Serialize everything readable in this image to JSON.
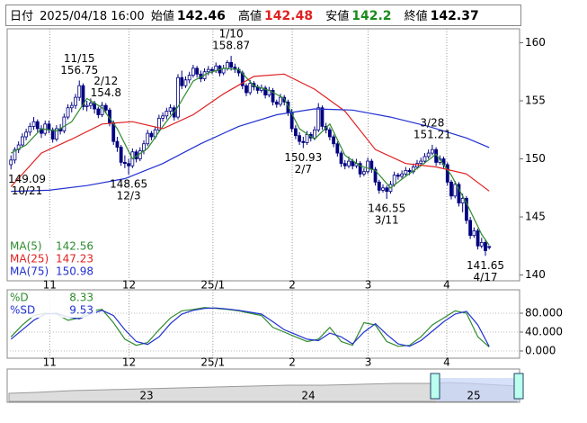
{
  "header": {
    "date_label": "日付",
    "date": "2025/04/18 16:00",
    "open_label": "始値",
    "open": 142.46,
    "high_label": "高値",
    "high": 142.48,
    "low_label": "安値",
    "low": 142.2,
    "close_label": "終値",
    "close": 142.37
  },
  "chart_data": [
    {
      "type": "candlestick",
      "up_color": "#ffffff",
      "down_color": "#000080",
      "xlim": [
        -1,
        134
      ],
      "xticks": [
        {
          "value": 10.2,
          "label": "11"
        },
        {
          "value": 31.1,
          "label": "12"
        },
        {
          "value": 53.2,
          "label": "25/1"
        },
        {
          "value": 74.1,
          "label": "2"
        },
        {
          "value": 94.1,
          "label": "3"
        },
        {
          "value": 114.8,
          "label": "4"
        }
      ],
      "ylim": [
        139.5,
        161.2
      ],
      "yticks": [
        140,
        145,
        150,
        155,
        160
      ],
      "grid": true,
      "candles": [
        [
          149.5,
          150.3,
          149.09,
          149.9
        ],
        [
          149.9,
          151.0,
          149.6,
          150.8
        ],
        [
          150.8,
          151.5,
          150.5,
          151.2
        ],
        [
          151.2,
          152.2,
          151.0,
          151.9
        ],
        [
          151.9,
          152.6,
          151.6,
          152.3
        ],
        [
          152.3,
          153.1,
          152.0,
          152.8
        ],
        [
          152.8,
          153.6,
          152.5,
          153.2
        ],
        [
          153.2,
          153.4,
          152.3,
          152.6
        ],
        [
          152.6,
          152.9,
          151.8,
          152.2
        ],
        [
          152.2,
          153.3,
          152.0,
          153.0
        ],
        [
          153.0,
          153.3,
          152.2,
          152.5
        ],
        [
          152.5,
          152.7,
          151.4,
          151.7
        ],
        [
          151.7,
          152.9,
          151.5,
          152.6
        ],
        [
          152.6,
          153.0,
          152.1,
          152.4
        ],
        [
          152.4,
          153.9,
          152.2,
          153.6
        ],
        [
          153.6,
          154.7,
          153.4,
          154.4
        ],
        [
          154.4,
          154.9,
          154.0,
          154.6
        ],
        [
          154.6,
          155.6,
          154.3,
          155.3
        ],
        [
          155.3,
          156.75,
          155.0,
          156.3
        ],
        [
          156.3,
          156.5,
          154.2,
          154.5
        ],
        [
          154.5,
          155.0,
          154.1,
          154.6
        ],
        [
          154.6,
          155.2,
          154.3,
          154.8
        ],
        [
          154.8,
          155.0,
          153.9,
          154.3
        ],
        [
          154.3,
          154.5,
          153.5,
          153.8
        ],
        [
          153.8,
          154.9,
          153.6,
          154.6
        ],
        [
          154.6,
          154.8,
          153.9,
          154.2
        ],
        [
          154.2,
          154.4,
          152.8,
          153.1
        ],
        [
          153.1,
          153.3,
          151.2,
          151.5
        ],
        [
          151.5,
          151.9,
          150.6,
          151.0
        ],
        [
          151.0,
          151.2,
          149.4,
          149.7
        ],
        [
          149.7,
          150.3,
          149.2,
          149.6
        ],
        [
          149.6,
          150.0,
          148.65,
          149.4
        ],
        [
          149.4,
          150.9,
          149.2,
          150.6
        ],
        [
          150.6,
          150.8,
          149.7,
          150.0
        ],
        [
          150.0,
          151.0,
          149.8,
          150.7
        ],
        [
          150.7,
          151.6,
          150.4,
          151.3
        ],
        [
          151.3,
          152.5,
          151.1,
          152.2
        ],
        [
          152.2,
          152.4,
          151.6,
          151.9
        ],
        [
          151.9,
          152.8,
          151.7,
          152.5
        ],
        [
          152.5,
          153.8,
          152.3,
          153.5
        ],
        [
          153.5,
          154.0,
          153.2,
          153.7
        ],
        [
          153.7,
          154.4,
          153.4,
          154.1
        ],
        [
          154.1,
          154.7,
          153.8,
          154.4
        ],
        [
          154.4,
          154.6,
          153.3,
          153.6
        ],
        [
          153.6,
          157.3,
          153.4,
          157.0
        ],
        [
          157.0,
          157.6,
          156.0,
          156.3
        ],
        [
          156.3,
          157.1,
          156.1,
          156.8
        ],
        [
          156.8,
          157.5,
          156.5,
          157.2
        ],
        [
          157.2,
          158.1,
          157.0,
          157.8
        ],
        [
          157.8,
          158.0,
          157.0,
          157.3
        ],
        [
          157.3,
          157.6,
          156.6,
          156.9
        ],
        [
          156.9,
          157.8,
          156.7,
          157.5
        ],
        [
          157.5,
          158.0,
          157.2,
          157.7
        ],
        [
          157.7,
          157.9,
          157.3,
          157.6
        ],
        [
          157.6,
          158.3,
          157.4,
          158.0
        ],
        [
          158.0,
          158.1,
          157.1,
          157.4
        ],
        [
          157.4,
          158.1,
          157.2,
          157.8
        ],
        [
          157.8,
          158.5,
          157.6,
          158.3
        ],
        [
          158.3,
          158.87,
          157.6,
          157.9
        ],
        [
          157.9,
          158.2,
          157.4,
          157.7
        ],
        [
          157.7,
          157.9,
          157.1,
          157.4
        ],
        [
          157.4,
          157.6,
          156.0,
          156.3
        ],
        [
          156.3,
          156.5,
          155.4,
          155.7
        ],
        [
          155.7,
          156.8,
          155.5,
          156.5
        ],
        [
          156.5,
          156.7,
          155.9,
          156.2
        ],
        [
          156.2,
          156.4,
          155.6,
          155.9
        ],
        [
          155.9,
          156.4,
          155.7,
          156.1
        ],
        [
          156.1,
          156.3,
          155.2,
          155.5
        ],
        [
          155.5,
          156.2,
          155.3,
          155.9
        ],
        [
          155.9,
          156.1,
          154.6,
          154.9
        ],
        [
          154.9,
          155.1,
          154.4,
          154.7
        ],
        [
          154.7,
          155.6,
          154.5,
          155.3
        ],
        [
          155.3,
          155.5,
          154.6,
          154.9
        ],
        [
          154.9,
          155.1,
          153.7,
          154.0
        ],
        [
          154.0,
          154.3,
          152.3,
          152.6
        ],
        [
          152.6,
          152.9,
          151.7,
          152.0
        ],
        [
          152.0,
          152.3,
          151.2,
          151.5
        ],
        [
          151.5,
          151.9,
          150.93,
          151.4
        ],
        [
          151.4,
          152.4,
          151.2,
          152.1
        ],
        [
          152.1,
          152.3,
          151.5,
          151.8
        ],
        [
          151.8,
          152.8,
          151.6,
          152.5
        ],
        [
          152.5,
          154.8,
          152.3,
          154.4
        ],
        [
          154.4,
          154.6,
          152.5,
          152.8
        ],
        [
          152.8,
          153.1,
          152.2,
          152.5
        ],
        [
          152.5,
          152.7,
          151.6,
          151.9
        ],
        [
          151.9,
          152.1,
          151.0,
          151.3
        ],
        [
          151.3,
          151.5,
          150.2,
          150.5
        ],
        [
          150.5,
          150.7,
          149.3,
          149.6
        ],
        [
          149.6,
          149.9,
          149.1,
          149.4
        ],
        [
          149.4,
          150.2,
          149.2,
          149.8
        ],
        [
          149.8,
          150.0,
          149.1,
          149.4
        ],
        [
          149.4,
          150.0,
          149.2,
          149.6
        ],
        [
          149.6,
          149.8,
          148.4,
          148.7
        ],
        [
          148.7,
          149.2,
          148.5,
          148.9
        ],
        [
          148.9,
          150.1,
          148.7,
          149.8
        ],
        [
          149.8,
          150.0,
          148.8,
          149.1
        ],
        [
          149.1,
          149.3,
          147.7,
          148.0
        ],
        [
          148.0,
          148.2,
          147.0,
          147.3
        ],
        [
          147.3,
          147.8,
          147.1,
          147.5
        ],
        [
          147.5,
          147.7,
          146.55,
          147.2
        ],
        [
          147.2,
          148.1,
          147.0,
          147.8
        ],
        [
          147.8,
          148.9,
          147.6,
          148.6
        ],
        [
          148.6,
          148.8,
          148.2,
          148.5
        ],
        [
          148.5,
          149.0,
          148.3,
          148.7
        ],
        [
          148.7,
          149.3,
          148.5,
          149.0
        ],
        [
          149.0,
          149.2,
          148.6,
          148.9
        ],
        [
          148.9,
          149.6,
          148.7,
          149.3
        ],
        [
          149.3,
          149.9,
          149.1,
          149.6
        ],
        [
          149.6,
          150.1,
          149.4,
          149.8
        ],
        [
          149.8,
          150.5,
          149.6,
          150.2
        ],
        [
          150.2,
          150.8,
          150.0,
          150.5
        ],
        [
          150.5,
          151.21,
          150.3,
          150.8
        ],
        [
          150.8,
          151.0,
          149.4,
          149.7
        ],
        [
          149.7,
          150.3,
          149.5,
          150.0
        ],
        [
          150.0,
          150.2,
          149.2,
          149.5
        ],
        [
          149.5,
          149.7,
          147.7,
          148.0
        ],
        [
          148.0,
          148.2,
          146.5,
          146.8
        ],
        [
          146.8,
          148.1,
          146.6,
          147.8
        ],
        [
          147.8,
          148.0,
          145.9,
          146.2
        ],
        [
          146.2,
          147.0,
          145.4,
          146.6
        ],
        [
          146.6,
          146.8,
          144.4,
          144.7
        ],
        [
          144.7,
          145.0,
          143.1,
          143.4
        ],
        [
          143.4,
          144.1,
          143.2,
          143.8
        ],
        [
          143.8,
          144.0,
          142.2,
          142.5
        ],
        [
          142.5,
          143.2,
          142.3,
          142.8
        ],
        [
          142.8,
          143.0,
          141.65,
          142.1
        ],
        [
          142.46,
          142.48,
          142.2,
          142.37
        ]
      ],
      "series": [
        {
          "name": "MA(5)",
          "color": "#2e8b2e",
          "x": [
            0,
            4,
            8,
            12,
            16,
            20,
            24,
            28,
            32,
            36,
            40,
            44,
            48,
            52,
            56,
            60,
            64,
            68,
            72,
            76,
            80,
            84,
            88,
            92,
            96,
            100,
            104,
            108,
            112,
            116,
            120,
            124,
            126
          ],
          "values": [
            150.5,
            151.2,
            152.6,
            152.4,
            153.2,
            155.2,
            154.4,
            152.6,
            150.0,
            150.9,
            152.8,
            154.5,
            156.7,
            157.4,
            157.8,
            157.7,
            156.3,
            155.9,
            155.2,
            152.6,
            151.7,
            153.0,
            150.3,
            149.4,
            149.0,
            147.5,
            148.5,
            149.4,
            150.4,
            148.6,
            146.2,
            143.5,
            142.56
          ]
        },
        {
          "name": "MA(25)",
          "color": "#e02020",
          "x": [
            0,
            8,
            16,
            24,
            32,
            40,
            48,
            56,
            64,
            72,
            80,
            88,
            96,
            104,
            112,
            120,
            126
          ],
          "values": [
            147.6,
            150.5,
            151.7,
            153.0,
            153.2,
            152.6,
            153.8,
            155.6,
            157.1,
            157.3,
            156.0,
            154.1,
            150.8,
            149.6,
            149.3,
            148.7,
            147.23
          ]
        },
        {
          "name": "MA(75)",
          "color": "#2030d0",
          "x": [
            0,
            10,
            20,
            30,
            40,
            50,
            60,
            70,
            80,
            90,
            100,
            110,
            120,
            126
          ],
          "values": [
            147.2,
            147.3,
            147.7,
            148.3,
            149.6,
            151.3,
            152.8,
            153.8,
            154.3,
            154.2,
            153.6,
            152.8,
            151.8,
            150.98
          ]
        }
      ],
      "annotations": [
        {
          "label": "11/15",
          "value": 156.75
        },
        {
          "label": "1/10",
          "value": 158.87
        },
        {
          "label": "2/12",
          "value": 154.8
        },
        {
          "label": "3/28",
          "value": 151.21
        },
        {
          "label": "10/21",
          "value": 149.09
        },
        {
          "label": "12/3",
          "value": 148.65
        },
        {
          "label": "2/7",
          "value": 150.93
        },
        {
          "label": "3/11",
          "value": 146.55
        },
        {
          "label": "4/17",
          "value": 141.65
        }
      ]
    },
    {
      "type": "line",
      "xlim": [
        -1,
        134
      ],
      "xticks": [
        {
          "value": 10.2,
          "label": "11"
        },
        {
          "value": 31.1,
          "label": "12"
        },
        {
          "value": 53.2,
          "label": "25/1"
        },
        {
          "value": 74.1,
          "label": "2"
        },
        {
          "value": 94.1,
          "label": "3"
        },
        {
          "value": 114.8,
          "label": "4"
        }
      ],
      "ylim": [
        -15.2,
        129.5
      ],
      "yticks": [
        {
          "value": 0,
          "label": "0.000"
        },
        {
          "value": 40,
          "label": "40.000"
        },
        {
          "value": 80,
          "label": "80.000"
        }
      ],
      "grid": true,
      "series": [
        {
          "name": "%D",
          "color": "#2e8b2e",
          "x": [
            0,
            3,
            6,
            9,
            12,
            15,
            18,
            21,
            24,
            27,
            30,
            33,
            36,
            39,
            42,
            45,
            48,
            51,
            54,
            57,
            60,
            63,
            66,
            69,
            72,
            75,
            78,
            81,
            84,
            87,
            90,
            93,
            96,
            99,
            102,
            105,
            108,
            111,
            114,
            117,
            120,
            123,
            126
          ],
          "values": [
            30,
            55,
            75,
            80,
            78,
            65,
            70,
            85,
            88,
            60,
            25,
            12,
            18,
            45,
            70,
            85,
            88,
            92,
            90,
            88,
            85,
            80,
            75,
            50,
            40,
            30,
            20,
            25,
            50,
            20,
            12,
            60,
            55,
            20,
            10,
            12,
            30,
            55,
            70,
            85,
            80,
            30,
            8.33
          ]
        },
        {
          "name": "%SD",
          "color": "#2030d0",
          "x": [
            0,
            3,
            6,
            9,
            12,
            15,
            18,
            21,
            24,
            27,
            30,
            33,
            36,
            39,
            42,
            45,
            48,
            51,
            54,
            57,
            60,
            63,
            66,
            69,
            72,
            75,
            78,
            81,
            84,
            87,
            90,
            93,
            96,
            99,
            102,
            105,
            108,
            111,
            114,
            117,
            120,
            123,
            126
          ],
          "values": [
            25,
            45,
            65,
            78,
            80,
            72,
            68,
            78,
            86,
            75,
            45,
            20,
            14,
            30,
            58,
            78,
            86,
            90,
            91,
            89,
            86,
            82,
            78,
            62,
            45,
            35,
            25,
            22,
            38,
            30,
            15,
            40,
            58,
            35,
            15,
            10,
            22,
            42,
            62,
            78,
            84,
            55,
            9.53
          ]
        }
      ]
    }
  ],
  "navigator": {
    "labels": [
      "23",
      "24",
      "25"
    ]
  }
}
